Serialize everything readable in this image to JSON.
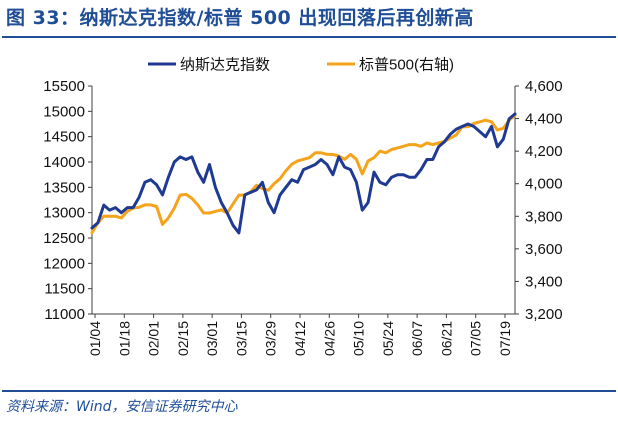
{
  "title": "图 33：纳斯达克指数/标普 500 出现回落后再创新高",
  "source": "资料来源：Wind，安信证券研究中心",
  "colors": {
    "nasdaq": "#1f3a93",
    "sp500": "#f5a31a",
    "axis": "#404040",
    "title": "#1f4e96"
  },
  "chart_data": {
    "type": "line",
    "x_labels": [
      "01/04",
      "01/18",
      "02/01",
      "02/15",
      "03/01",
      "03/15",
      "03/29",
      "04/12",
      "04/26",
      "05/10",
      "05/24",
      "06/07",
      "06/21",
      "07/05",
      "07/19"
    ],
    "left_axis": {
      "min": 11000,
      "max": 15500,
      "ticks": [
        "11000",
        "11500",
        "12000",
        "12500",
        "13000",
        "13500",
        "14000",
        "14500",
        "15000",
        "15500"
      ]
    },
    "right_axis": {
      "min": 3200,
      "max": 4600,
      "ticks": [
        "3,200",
        "3,400",
        "3,600",
        "3,800",
        "4,000",
        "4,200",
        "4,400",
        "4,600"
      ]
    },
    "series": [
      {
        "name": "纳斯达克指数",
        "axis": "left",
        "values": [
          12700,
          12800,
          13150,
          13050,
          13100,
          13000,
          13100,
          13100,
          13300,
          13600,
          13650,
          13550,
          13350,
          13700,
          14000,
          14100,
          14050,
          14100,
          13800,
          13600,
          13950,
          13500,
          13200,
          13000,
          12750,
          12600,
          13350,
          13400,
          13450,
          13600,
          13200,
          13000,
          13350,
          13500,
          13650,
          13600,
          13850,
          13900,
          13950,
          14050,
          13950,
          13750,
          14100,
          13900,
          13850,
          13600,
          13050,
          13200,
          13800,
          13600,
          13550,
          13700,
          13750,
          13750,
          13700,
          13700,
          13850,
          14050,
          14050,
          14300,
          14400,
          14550,
          14650,
          14700,
          14750,
          14700,
          14600,
          14500,
          14700,
          14300,
          14450,
          14850,
          14950
        ]
      },
      {
        "name": "标普500(右轴)",
        "axis": "right",
        "values": [
          3700,
          3760,
          3800,
          3800,
          3800,
          3790,
          3830,
          3850,
          3855,
          3870,
          3870,
          3860,
          3750,
          3790,
          3850,
          3930,
          3935,
          3910,
          3870,
          3820,
          3820,
          3830,
          3840,
          3820,
          3875,
          3930,
          3930,
          3950,
          3990,
          3970,
          3960,
          4000,
          4030,
          4080,
          4120,
          4140,
          4150,
          4160,
          4190,
          4190,
          4180,
          4180,
          4170,
          4150,
          4180,
          4150,
          4060,
          4140,
          4160,
          4200,
          4190,
          4210,
          4220,
          4230,
          4240,
          4240,
          4230,
          4250,
          4240,
          4250,
          4260,
          4280,
          4300,
          4350,
          4350,
          4370,
          4380,
          4390,
          4380,
          4330,
          4340,
          4390,
          4420
        ]
      }
    ]
  }
}
